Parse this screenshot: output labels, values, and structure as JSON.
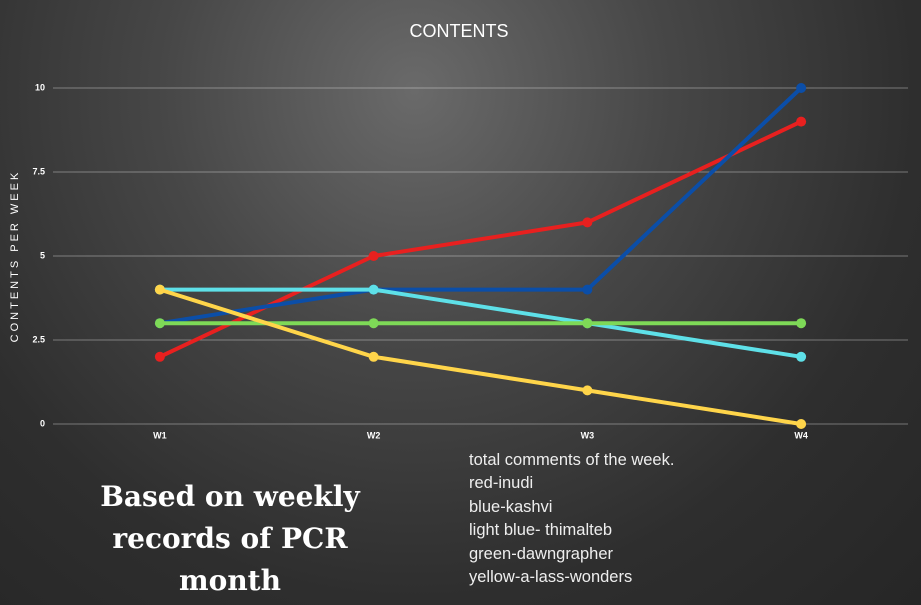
{
  "chart_data": {
    "type": "line",
    "title": "CONTENTS",
    "y_label": "CONTENTS PER WEEK",
    "categories": [
      "W1",
      "W2",
      "W3",
      "W4"
    ],
    "series": [
      {
        "color": "#e8201f",
        "values": [
          2,
          5,
          6,
          9
        ]
      },
      {
        "color": "#0b4ea8",
        "values": [
          3,
          4,
          4,
          10
        ]
      },
      {
        "color": "#5ee0e8",
        "values": [
          4,
          4,
          3,
          2
        ]
      },
      {
        "color": "#7ed957",
        "values": [
          3,
          3,
          3,
          3
        ]
      },
      {
        "color": "#ffd54a",
        "values": [
          4,
          2,
          1,
          0
        ]
      }
    ],
    "ylim": [
      0,
      10
    ],
    "yticks": [
      0,
      2.5,
      5,
      7.5,
      10
    ],
    "grid": true
  },
  "caption": "Based on weekly records of PCR month",
  "notes": [
    "total comments of the week.",
    "red-inudi",
    "blue-kashvi",
    "light blue- thimalteb",
    "green-dawngrapher",
    "yellow-a-lass-wonders"
  ]
}
